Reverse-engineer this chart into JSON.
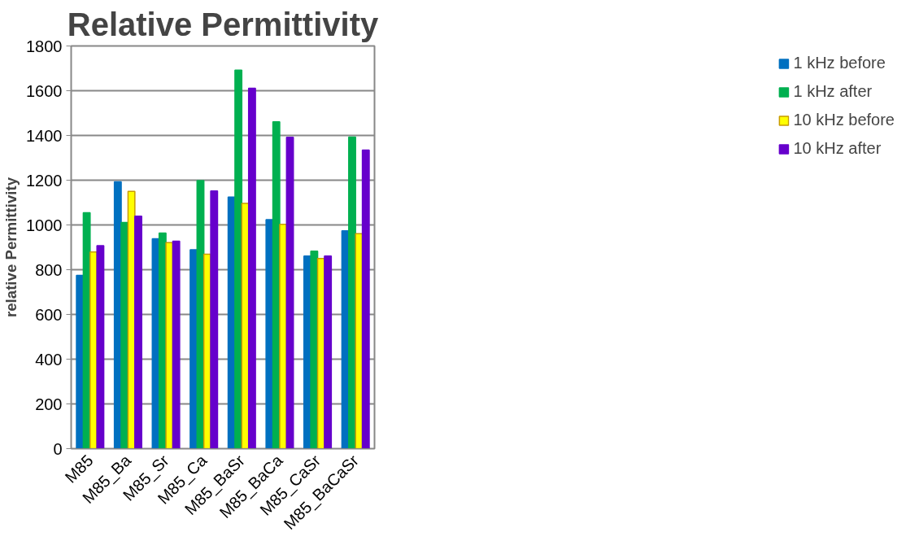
{
  "chart_data": {
    "type": "bar",
    "title": "Relative Permittivity",
    "ylabel": "relative Permittivity",
    "categories": [
      "M85",
      "M85_Ba",
      "M85_Sr",
      "M85_Ca",
      "M85_BaSr",
      "M85_BaCa",
      "M85_CaSr",
      "M85_BaCaSr"
    ],
    "series": [
      {
        "name": "1 kHz before",
        "color": "#0070c0",
        "values": [
          775,
          1193,
          938,
          889,
          1125,
          1024,
          861,
          974
        ]
      },
      {
        "name": "1 kHz after",
        "color": "#00b050",
        "values": [
          1055,
          1011,
          964,
          1198,
          1692,
          1461,
          883,
          1393
        ]
      },
      {
        "name": "10 kHz before",
        "color": "#ffff00",
        "values": [
          879,
          1150,
          921,
          869,
          1096,
          1003,
          850,
          961
        ]
      },
      {
        "name": "10 kHz after",
        "color": "#6600cc",
        "values": [
          907,
          1039,
          927,
          1152,
          1611,
          1392,
          861,
          1335
        ]
      }
    ],
    "ylim": [
      0,
      1800
    ],
    "yticks": [
      0,
      200,
      400,
      600,
      800,
      1000,
      1200,
      1400,
      1600,
      1800
    ],
    "grid": "y",
    "legend": "right"
  }
}
